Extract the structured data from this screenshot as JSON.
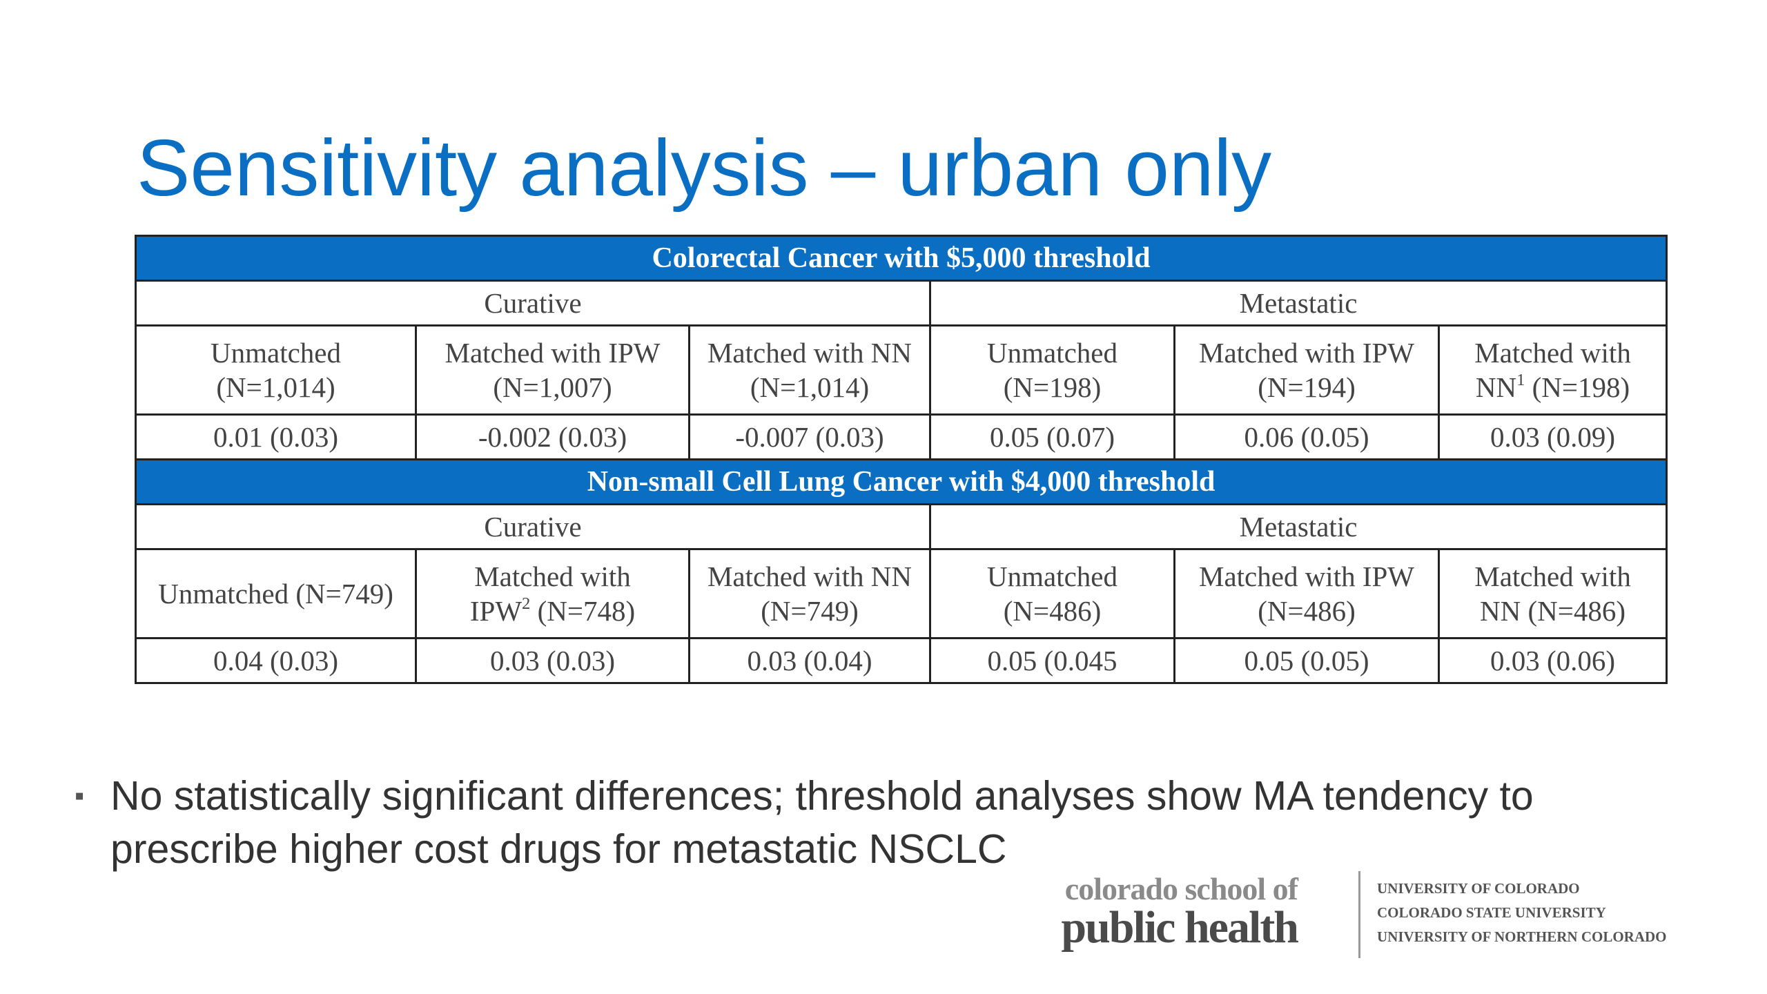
{
  "title": "Sensitivity analysis – urban only",
  "tables": [
    {
      "heading": "Colorectal Cancer with $5,000 threshold",
      "groups": [
        "Curative",
        "Metastatic"
      ],
      "columns": [
        {
          "label": "Unmatched",
          "sup": "",
          "n": "(N=1,014)"
        },
        {
          "label": "Matched with IPW",
          "sup": "",
          "n": "(N=1,007)"
        },
        {
          "label": "Matched with NN",
          "sup": "",
          "n": "(N=1,014)"
        },
        {
          "label": "Unmatched",
          "sup": "",
          "n": "(N=198)"
        },
        {
          "label": "Matched with IPW",
          "sup": "",
          "n": "(N=194)"
        },
        {
          "label": "Matched with NN",
          "sup": "1",
          "n": "(N=198)"
        }
      ],
      "values": [
        "0.01 (0.03)",
        "-0.002 (0.03)",
        "-0.007 (0.03)",
        "0.05 (0.07)",
        "0.06 (0.05)",
        "0.03 (0.09)"
      ]
    },
    {
      "heading": "Non-small Cell Lung Cancer with $4,000 threshold",
      "groups": [
        "Curative",
        "Metastatic"
      ],
      "columns": [
        {
          "label": "Unmatched",
          "sup": "",
          "n": "(N=749)"
        },
        {
          "label": "Matched with IPW",
          "sup": "2",
          "n": "(N=748)"
        },
        {
          "label": "Matched with NN",
          "sup": "",
          "n": "(N=749)"
        },
        {
          "label": "Unmatched",
          "sup": "",
          "n": "(N=486)"
        },
        {
          "label": "Matched with IPW",
          "sup": "",
          "n": "(N=486)"
        },
        {
          "label": "Matched with NN",
          "sup": "",
          "n": "(N=486)"
        }
      ],
      "values": [
        "0.04 (0.03)",
        "0.03 (0.03)",
        "0.03 (0.04)",
        "0.05 (0.045",
        "0.05 (0.05)",
        "0.03 (0.06)"
      ]
    }
  ],
  "bullet": {
    "text": "No statistically significant differences; threshold analyses show MA tendency to prescribe higher cost drugs for metastatic NSCLC"
  },
  "logo": {
    "line1": "colorado school of",
    "line2": "public health",
    "universities": [
      "UNIVERSITY OF COLORADO",
      "COLORADO STATE UNIVERSITY",
      "UNIVERSITY OF NORTHERN COLORADO"
    ]
  },
  "colors": {
    "accent": "#0a6fc2",
    "text": "#444444",
    "border": "#222222"
  }
}
